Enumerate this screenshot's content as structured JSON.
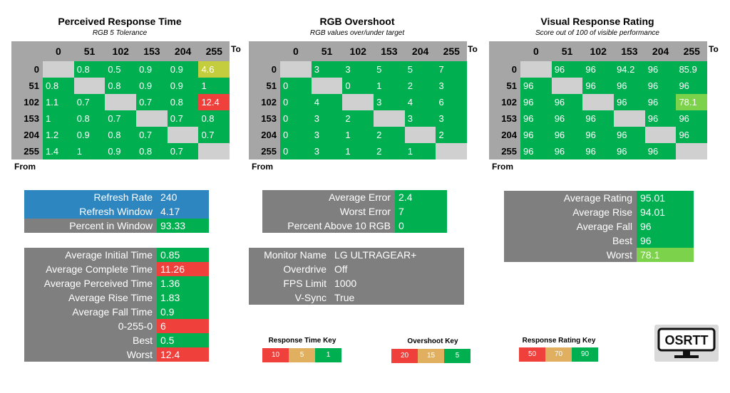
{
  "colors": {
    "green": "#00b050",
    "lightgreen": "#3fc85a",
    "yellowgreen": "#c4cd3d",
    "red": "#f0403c",
    "tan": "#e0b060",
    "gray": "#7f7f7f",
    "blue": "#2e86c1",
    "limegreen": "#7cd24a"
  },
  "col_headers": [
    "0",
    "51",
    "102",
    "153",
    "204",
    "255"
  ],
  "row_headers": [
    "0",
    "51",
    "102",
    "153",
    "204",
    "255"
  ],
  "to_label": "To",
  "from_label": "From",
  "grids": [
    {
      "title": "Perceived Response Time",
      "subtitle": "RGB 5 Tolerance",
      "cells": [
        [
          null,
          "0.8",
          "0.5",
          "0.9",
          "0.9",
          "4.6"
        ],
        [
          "0.8",
          null,
          "0.8",
          "0.9",
          "0.9",
          "1"
        ],
        [
          "1.1",
          "0.7",
          null,
          "0.7",
          "0.8",
          "12.4"
        ],
        [
          "1",
          "0.8",
          "0.7",
          null,
          "0.7",
          "0.8"
        ],
        [
          "1.2",
          "0.9",
          "0.8",
          "0.7",
          null,
          "0.7"
        ],
        [
          "1.4",
          "1",
          "0.9",
          "0.8",
          "0.7",
          null
        ]
      ],
      "colors": [
        [
          null,
          "g",
          "g",
          "g",
          "g",
          "y"
        ],
        [
          "g",
          null,
          "g",
          "g",
          "g",
          "g"
        ],
        [
          "g",
          "g",
          null,
          "g",
          "g",
          "r"
        ],
        [
          "g",
          "g",
          "g",
          null,
          "g",
          "g"
        ],
        [
          "g",
          "g",
          "g",
          "g",
          null,
          "g"
        ],
        [
          "g",
          "g",
          "g",
          "g",
          "g",
          null
        ]
      ]
    },
    {
      "title": "RGB Overshoot",
      "subtitle": "RGB values over/under target",
      "cells": [
        [
          null,
          "3",
          "3",
          "5",
          "5",
          "7"
        ],
        [
          "0",
          null,
          "0",
          "1",
          "2",
          "3"
        ],
        [
          "0",
          "4",
          null,
          "3",
          "4",
          "6"
        ],
        [
          "0",
          "3",
          "2",
          null,
          "3",
          "3"
        ],
        [
          "0",
          "3",
          "1",
          "2",
          null,
          "2"
        ],
        [
          "0",
          "3",
          "1",
          "2",
          "1",
          null
        ]
      ],
      "colors": [
        [
          null,
          "g",
          "g",
          "g",
          "g",
          "g"
        ],
        [
          "g",
          null,
          "g",
          "g",
          "g",
          "g"
        ],
        [
          "g",
          "g",
          null,
          "g",
          "g",
          "g"
        ],
        [
          "g",
          "g",
          "g",
          null,
          "g",
          "g"
        ],
        [
          "g",
          "g",
          "g",
          "g",
          null,
          "g"
        ],
        [
          "g",
          "g",
          "g",
          "g",
          "g",
          null
        ]
      ]
    },
    {
      "title": "Visual Response Rating",
      "subtitle": "Score out of 100 of visible performance",
      "cells": [
        [
          null,
          "96",
          "96",
          "94.2",
          "96",
          "85.9"
        ],
        [
          "96",
          null,
          "96",
          "96",
          "96",
          "96"
        ],
        [
          "96",
          "96",
          null,
          "96",
          "96",
          "78.1"
        ],
        [
          "96",
          "96",
          "96",
          null,
          "96",
          "96"
        ],
        [
          "96",
          "96",
          "96",
          "96",
          null,
          "96"
        ],
        [
          "96",
          "96",
          "96",
          "96",
          "96",
          null
        ]
      ],
      "colors": [
        [
          null,
          "g",
          "g",
          "g",
          "g",
          "g"
        ],
        [
          "g",
          null,
          "g",
          "g",
          "g",
          "g"
        ],
        [
          "g",
          "g",
          null,
          "g",
          "g",
          "l"
        ],
        [
          "g",
          "g",
          "g",
          null,
          "g",
          "g"
        ],
        [
          "g",
          "g",
          "g",
          "g",
          null,
          "g"
        ],
        [
          "g",
          "g",
          "g",
          "g",
          "g",
          null
        ]
      ]
    }
  ],
  "refresh_table": [
    {
      "label": "Refresh Rate",
      "value": "240",
      "label_bg": "b",
      "value_bg": "b"
    },
    {
      "label": "Refresh Window",
      "value": "4.17",
      "label_bg": "b",
      "value_bg": "b"
    },
    {
      "label": "Percent in Window",
      "value": "93.33",
      "label_bg": "k",
      "value_bg": "g"
    }
  ],
  "time_table": [
    {
      "label": "Average Initial Time",
      "value": "0.85",
      "value_bg": "g"
    },
    {
      "label": "Average Complete Time",
      "value": "11.26",
      "value_bg": "r"
    },
    {
      "label": "Average Perceived Time",
      "value": "1.36",
      "value_bg": "g"
    },
    {
      "label": "Average Rise Time",
      "value": "1.83",
      "value_bg": "g"
    },
    {
      "label": "Average Fall Time",
      "value": "0.9",
      "value_bg": "g"
    },
    {
      "label": "0-255-0",
      "value": "6",
      "value_bg": "r"
    },
    {
      "label": "Best",
      "value": "0.5",
      "value_bg": "g"
    },
    {
      "label": "Worst",
      "value": "12.4",
      "value_bg": "r"
    }
  ],
  "error_table": [
    {
      "label": "Average Error",
      "value": "2.4",
      "value_bg": "g"
    },
    {
      "label": "Worst Error",
      "value": "7",
      "value_bg": "g"
    },
    {
      "label": "Percent Above 10 RGB",
      "value": "0",
      "value_bg": "g"
    }
  ],
  "monitor_table": [
    {
      "label": "Monitor Name",
      "value": "LG ULTRAGEAR+"
    },
    {
      "label": "Overdrive",
      "value": "Off"
    },
    {
      "label": "FPS Limit",
      "value": "1000"
    },
    {
      "label": "V-Sync",
      "value": "True"
    }
  ],
  "rating_table": [
    {
      "label": "Average Rating",
      "value": "95.01",
      "value_bg": "g"
    },
    {
      "label": "Average Rise",
      "value": "94.01",
      "value_bg": "g"
    },
    {
      "label": "Average Fall",
      "value": "96",
      "value_bg": "g"
    },
    {
      "label": "Best",
      "value": "96",
      "value_bg": "g"
    },
    {
      "label": "Worst",
      "value": "78.1",
      "value_bg": "l"
    }
  ],
  "keys": [
    {
      "title": "Response Time Key",
      "values": [
        "10",
        "5",
        "1"
      ]
    },
    {
      "title": "Overshoot Key",
      "values": [
        "20",
        "15",
        "5"
      ]
    },
    {
      "title": "Response Rating Key",
      "values": [
        "50",
        "70",
        "90"
      ]
    }
  ],
  "logo_text": "OSRTT"
}
